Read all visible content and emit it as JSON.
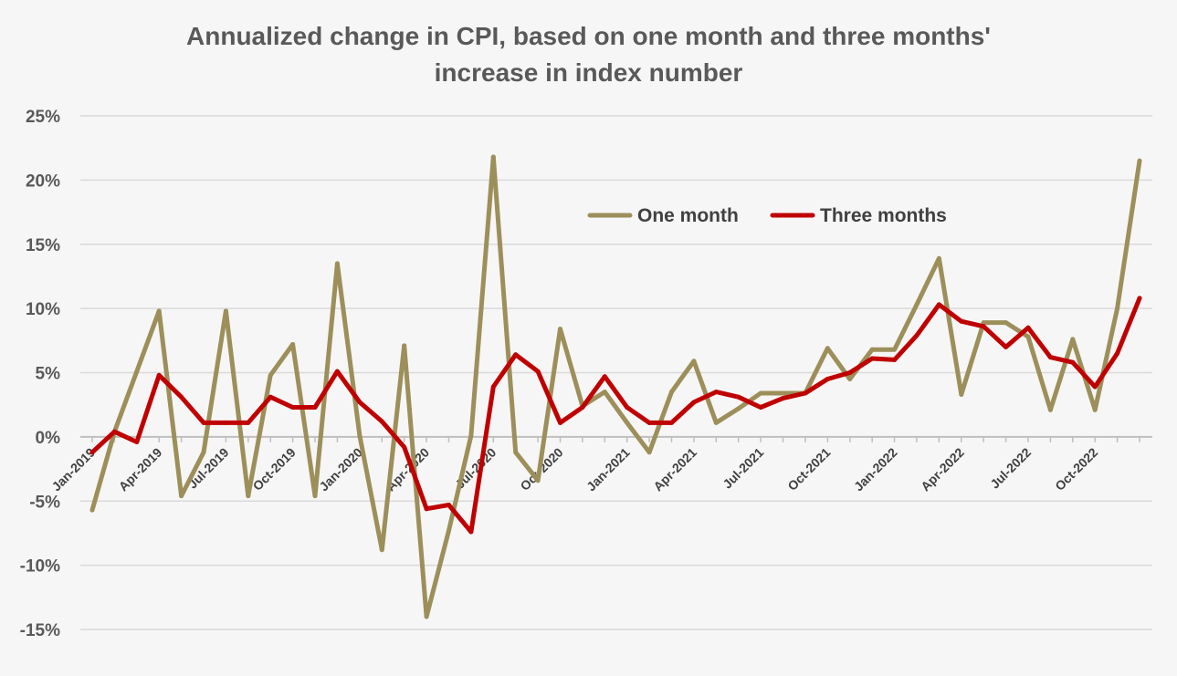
{
  "chart_data": {
    "type": "line",
    "title_line1": "Annualized change in CPI, based on one month and three months'",
    "title_line2": "increase in index number",
    "xlabel": "",
    "ylabel": "",
    "ylim": [
      -15,
      25
    ],
    "y_ticks": [
      "-15%",
      "-10%",
      "-5%",
      "0%",
      "5%",
      "10%",
      "15%",
      "20%",
      "25%"
    ],
    "y_tick_values": [
      -15,
      -10,
      -5,
      0,
      5,
      10,
      15,
      20,
      25
    ],
    "grid": true,
    "legend_position": "top-center",
    "x": [
      "Jan-2019",
      "Feb-2019",
      "Mar-2019",
      "Apr-2019",
      "May-2019",
      "Jun-2019",
      "Jul-2019",
      "Aug-2019",
      "Sep-2019",
      "Oct-2019",
      "Nov-2019",
      "Dec-2019",
      "Jan-2020",
      "Feb-2020",
      "Mar-2020",
      "Apr-2020",
      "May-2020",
      "Jun-2020",
      "Jul-2020",
      "Aug-2020",
      "Sep-2020",
      "Oct-2020",
      "Nov-2020",
      "Dec-2020",
      "Jan-2021",
      "Feb-2021",
      "Mar-2021",
      "Apr-2021",
      "May-2021",
      "Jun-2021",
      "Jul-2021",
      "Aug-2021",
      "Sep-2021",
      "Oct-2021",
      "Nov-2021",
      "Dec-2021",
      "Jan-2022",
      "Feb-2022",
      "Mar-2022",
      "Apr-2022",
      "May-2022",
      "Jun-2022",
      "Jul-2022",
      "Aug-2022",
      "Sep-2022",
      "Oct-2022",
      "Nov-2022",
      "Dec-2022"
    ],
    "x_tick_labels": [
      {
        "index": 0,
        "label": "Jan-2019"
      },
      {
        "index": 3,
        "label": "Apr-2019"
      },
      {
        "index": 6,
        "label": "Jul-2019"
      },
      {
        "index": 9,
        "label": "Oct-2019"
      },
      {
        "index": 12,
        "label": "Jan-2020"
      },
      {
        "index": 15,
        "label": "Apr-2020"
      },
      {
        "index": 18,
        "label": "Jul-2020"
      },
      {
        "index": 21,
        "label": "Oct-2020"
      },
      {
        "index": 24,
        "label": "Jan-2021"
      },
      {
        "index": 27,
        "label": "Apr-2021"
      },
      {
        "index": 30,
        "label": "Jul-2021"
      },
      {
        "index": 33,
        "label": "Oct-2021"
      },
      {
        "index": 36,
        "label": "Jan-2022"
      },
      {
        "index": 39,
        "label": "Apr-2022"
      },
      {
        "index": 42,
        "label": "Jul-2022"
      },
      {
        "index": 45,
        "label": "Oct-2022"
      }
    ],
    "series": [
      {
        "name": "One month",
        "color": "#9c8f5a",
        "values": [
          -5.7,
          0.4,
          5.1,
          9.8,
          -4.6,
          -1.2,
          9.8,
          -4.6,
          4.8,
          7.2,
          -4.6,
          13.5,
          0.1,
          -8.8,
          7.1,
          -14.0,
          -7.3,
          0.1,
          21.8,
          -1.2,
          -3.4,
          8.4,
          2.4,
          3.5,
          1.1,
          -1.2,
          3.5,
          5.9,
          1.1,
          2.2,
          3.4,
          3.4,
          3.4,
          6.9,
          4.5,
          6.8,
          6.8,
          10.3,
          13.9,
          3.3,
          8.9,
          8.9,
          7.8,
          2.1,
          7.6,
          2.1,
          10.0,
          21.5
        ]
      },
      {
        "name": "Three months",
        "color": "#c00000",
        "values": [
          -1.2,
          0.4,
          -0.4,
          4.8,
          3.1,
          1.1,
          1.1,
          1.1,
          3.1,
          2.3,
          2.3,
          5.1,
          2.7,
          1.2,
          -0.8,
          -5.6,
          -5.3,
          -7.4,
          3.9,
          6.4,
          5.1,
          1.1,
          2.3,
          4.7,
          2.3,
          1.1,
          1.1,
          2.7,
          3.5,
          3.1,
          2.3,
          3.0,
          3.4,
          4.5,
          5.0,
          6.1,
          6.0,
          7.9,
          10.3,
          9.0,
          8.6,
          7.0,
          8.5,
          6.2,
          5.8,
          3.9,
          6.5,
          10.8
        ]
      }
    ]
  }
}
